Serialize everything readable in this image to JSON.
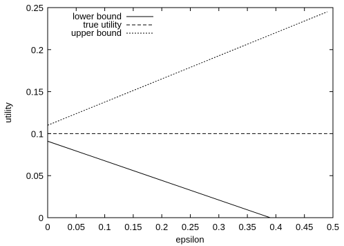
{
  "chart_data": {
    "type": "line",
    "title": "",
    "xlabel": "epsilon",
    "ylabel": "utility",
    "xlim": [
      0,
      0.5
    ],
    "ylim": [
      0,
      0.25
    ],
    "xticks": [
      0,
      0.05,
      0.1,
      0.15,
      0.2,
      0.25,
      0.3,
      0.35,
      0.4,
      0.45,
      0.5
    ],
    "xtick_labels": [
      "0",
      "0.05",
      "0.1",
      "0.15",
      "0.2",
      "0.25",
      "0.3",
      "0.35",
      "0.4",
      "0.45",
      "0.5"
    ],
    "yticks": [
      0,
      0.05,
      0.1,
      0.15,
      0.2,
      0.25
    ],
    "ytick_labels": [
      "0",
      "0.05",
      "0.1",
      "0.15",
      "0.2",
      "0.25"
    ],
    "grid": false,
    "legend_position": "top-left",
    "series": [
      {
        "name": "lower bound",
        "style": "solid",
        "color": "#000000",
        "x": [
          0,
          0.39
        ],
        "y": [
          0.091,
          0
        ]
      },
      {
        "name": "true utility",
        "style": "dashed",
        "color": "#000000",
        "x": [
          0,
          0.49
        ],
        "y": [
          0.1,
          0.1
        ]
      },
      {
        "name": "upper bound",
        "style": "dotted",
        "color": "#000000",
        "x": [
          0,
          0.49
        ],
        "y": [
          0.11,
          0.245
        ]
      }
    ]
  }
}
